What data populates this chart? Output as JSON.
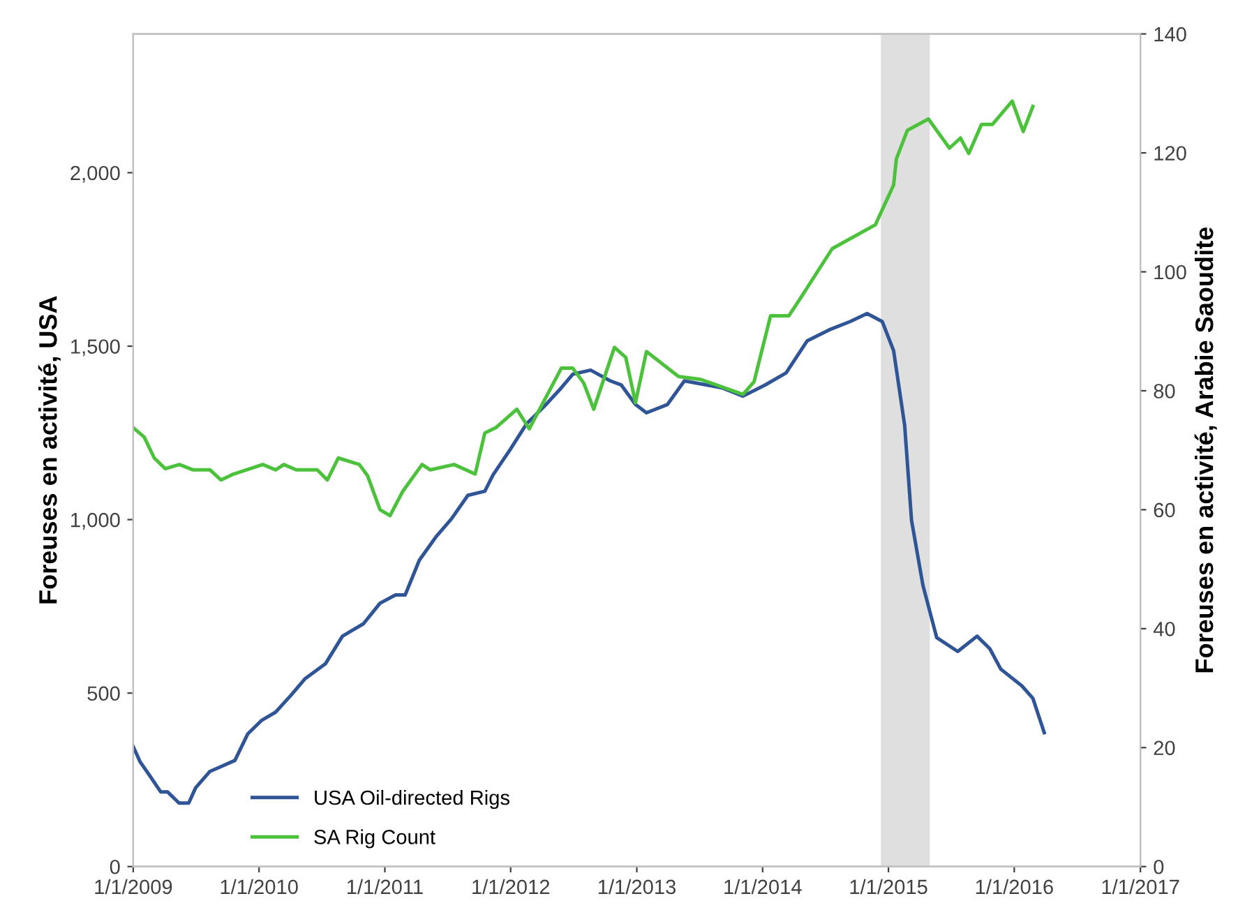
{
  "chart_data": {
    "type": "line",
    "ylabel": "Foreuses en activité, USA",
    "y2label": "Foreuses en activité, Arabie Saoudite",
    "xlim": [
      "2009-01-01",
      "2017-01-01"
    ],
    "xticks": [
      {
        "value": "2009-01-01",
        "label": "1/1/2009"
      },
      {
        "value": "2010-01-01",
        "label": "1/1/2010"
      },
      {
        "value": "2011-01-01",
        "label": "1/1/2011"
      },
      {
        "value": "2012-01-01",
        "label": "1/1/2012"
      },
      {
        "value": "2013-01-01",
        "label": "1/1/2013"
      },
      {
        "value": "2014-01-01",
        "label": "1/1/2014"
      },
      {
        "value": "2015-01-01",
        "label": "1/1/2015"
      },
      {
        "value": "2016-01-01",
        "label": "1/1/2016"
      },
      {
        "value": "2017-01-01",
        "label": "1/1/2017"
      }
    ],
    "ylim": [
      0,
      2400
    ],
    "yticks": [
      0,
      500,
      {
        "value": 1000,
        "label": "1,000"
      },
      {
        "value": 1500,
        "label": "1,500"
      },
      {
        "value": 2000,
        "label": "2,000"
      }
    ],
    "y2lim": [
      0,
      140
    ],
    "y2ticks": [
      0,
      20,
      40,
      60,
      80,
      100,
      120,
      140
    ],
    "grid": false,
    "legend": "bottom left",
    "bands": [
      {
        "axis": "x",
        "from": "2014-12-10",
        "to": "2015-05-01",
        "color": "#e0dfe0"
      }
    ],
    "series": [
      {
        "name": "USA Oil-directed Rigs",
        "color": "#2f5597",
        "x": [
          "2009-01-01",
          "2009-01-21",
          "2009-02-18",
          "2009-03-22",
          "2009-04-11",
          "2009-05-14",
          "2009-06-11",
          "2009-07-01",
          "2009-08-11",
          "2009-09-08",
          "2009-10-23",
          "2009-11-29",
          "2010-01-08",
          "2010-02-18",
          "2010-04-03",
          "2010-05-14",
          "2010-07-13",
          "2010-08-31",
          "2010-10-31",
          "2010-12-18",
          "2011-02-01",
          "2011-03-01",
          "2011-04-11",
          "2011-05-29",
          "2011-07-13",
          "2011-08-30",
          "2011-10-18",
          "2011-11-11",
          "2011-12-30",
          "2012-02-16",
          "2012-04-09",
          "2012-05-27",
          "2012-06-29",
          "2012-08-20",
          "2012-10-16",
          "2012-11-17",
          "2012-12-28",
          "2013-01-29",
          "2013-03-31",
          "2013-05-19",
          "2013-09-05",
          "2013-11-05",
          "2014-01-08",
          "2014-03-10",
          "2014-05-10",
          "2014-07-13",
          "2014-09-12",
          "2014-10-31",
          "2014-12-14",
          "2015-01-16",
          "2015-02-17",
          "2015-03-09",
          "2015-04-11",
          "2015-05-21",
          "2015-07-21",
          "2015-09-15",
          "2015-10-22",
          "2015-11-23",
          "2016-01-23",
          "2016-02-24",
          "2016-03-28"
        ],
        "values": [
          346,
          302,
          262,
          215,
          215,
          183,
          183,
          227,
          274,
          286,
          306,
          382,
          421,
          445,
          493,
          541,
          585,
          664,
          700,
          759,
          783,
          783,
          883,
          950,
          1002,
          1070,
          1082,
          1129,
          1201,
          1276,
          1328,
          1380,
          1419,
          1431,
          1400,
          1388,
          1332,
          1308,
          1332,
          1400,
          1380,
          1356,
          1388,
          1423,
          1515,
          1547,
          1571,
          1594,
          1571,
          1487,
          1272,
          998,
          811,
          660,
          620,
          664,
          628,
          569,
          521,
          485,
          386
        ]
      },
      {
        "name": "SA Rig Count",
        "color": "#4cc23c",
        "axis": "y2",
        "x": [
          "2009-01-01",
          "2009-02-02",
          "2009-03-03",
          "2009-04-04",
          "2009-05-15",
          "2009-06-24",
          "2009-08-12",
          "2009-09-13",
          "2009-10-19",
          "2010-01-12",
          "2010-02-18",
          "2010-03-14",
          "2010-04-19",
          "2010-06-19",
          "2010-07-18",
          "2010-08-19",
          "2010-10-19",
          "2010-11-12",
          "2010-12-18",
          "2011-01-16",
          "2011-02-21",
          "2011-04-19",
          "2011-05-13",
          "2011-07-21",
          "2011-09-20",
          "2011-10-18",
          "2011-11-19",
          "2012-01-19",
          "2012-02-24",
          "2012-05-27",
          "2012-06-29",
          "2012-07-31",
          "2012-08-29",
          "2012-10-28",
          "2012-11-30",
          "2012-12-28",
          "2013-01-29",
          "2013-05-02",
          "2013-07-06",
          "2013-11-05",
          "2013-12-07",
          "2014-01-24",
          "2014-03-18",
          "2014-04-19",
          "2014-07-22",
          "2014-11-24",
          "2015-01-16",
          "2015-01-24",
          "2015-02-25",
          "2015-04-27",
          "2015-06-27",
          "2015-07-29",
          "2015-08-22",
          "2015-09-28",
          "2015-10-30",
          "2015-12-26",
          "2016-01-27",
          "2016-02-24"
        ],
        "values": [
          73.8,
          72.2,
          68.7,
          66.9,
          67.6,
          66.7,
          66.7,
          65.0,
          66.0,
          67.6,
          66.7,
          67.6,
          66.7,
          66.7,
          65.0,
          68.7,
          67.6,
          65.7,
          60.0,
          59.0,
          63.0,
          67.6,
          66.7,
          67.6,
          66.0,
          72.9,
          73.8,
          76.9,
          73.6,
          83.8,
          83.8,
          81.3,
          76.9,
          87.3,
          85.6,
          78.0,
          86.6,
          82.4,
          81.9,
          79.4,
          81.5,
          92.6,
          92.6,
          95.4,
          103.9,
          107.9,
          114.6,
          119.0,
          123.8,
          125.7,
          120.8,
          122.5,
          119.9,
          124.8,
          124.8,
          128.7,
          123.6,
          127.8
        ]
      }
    ]
  }
}
